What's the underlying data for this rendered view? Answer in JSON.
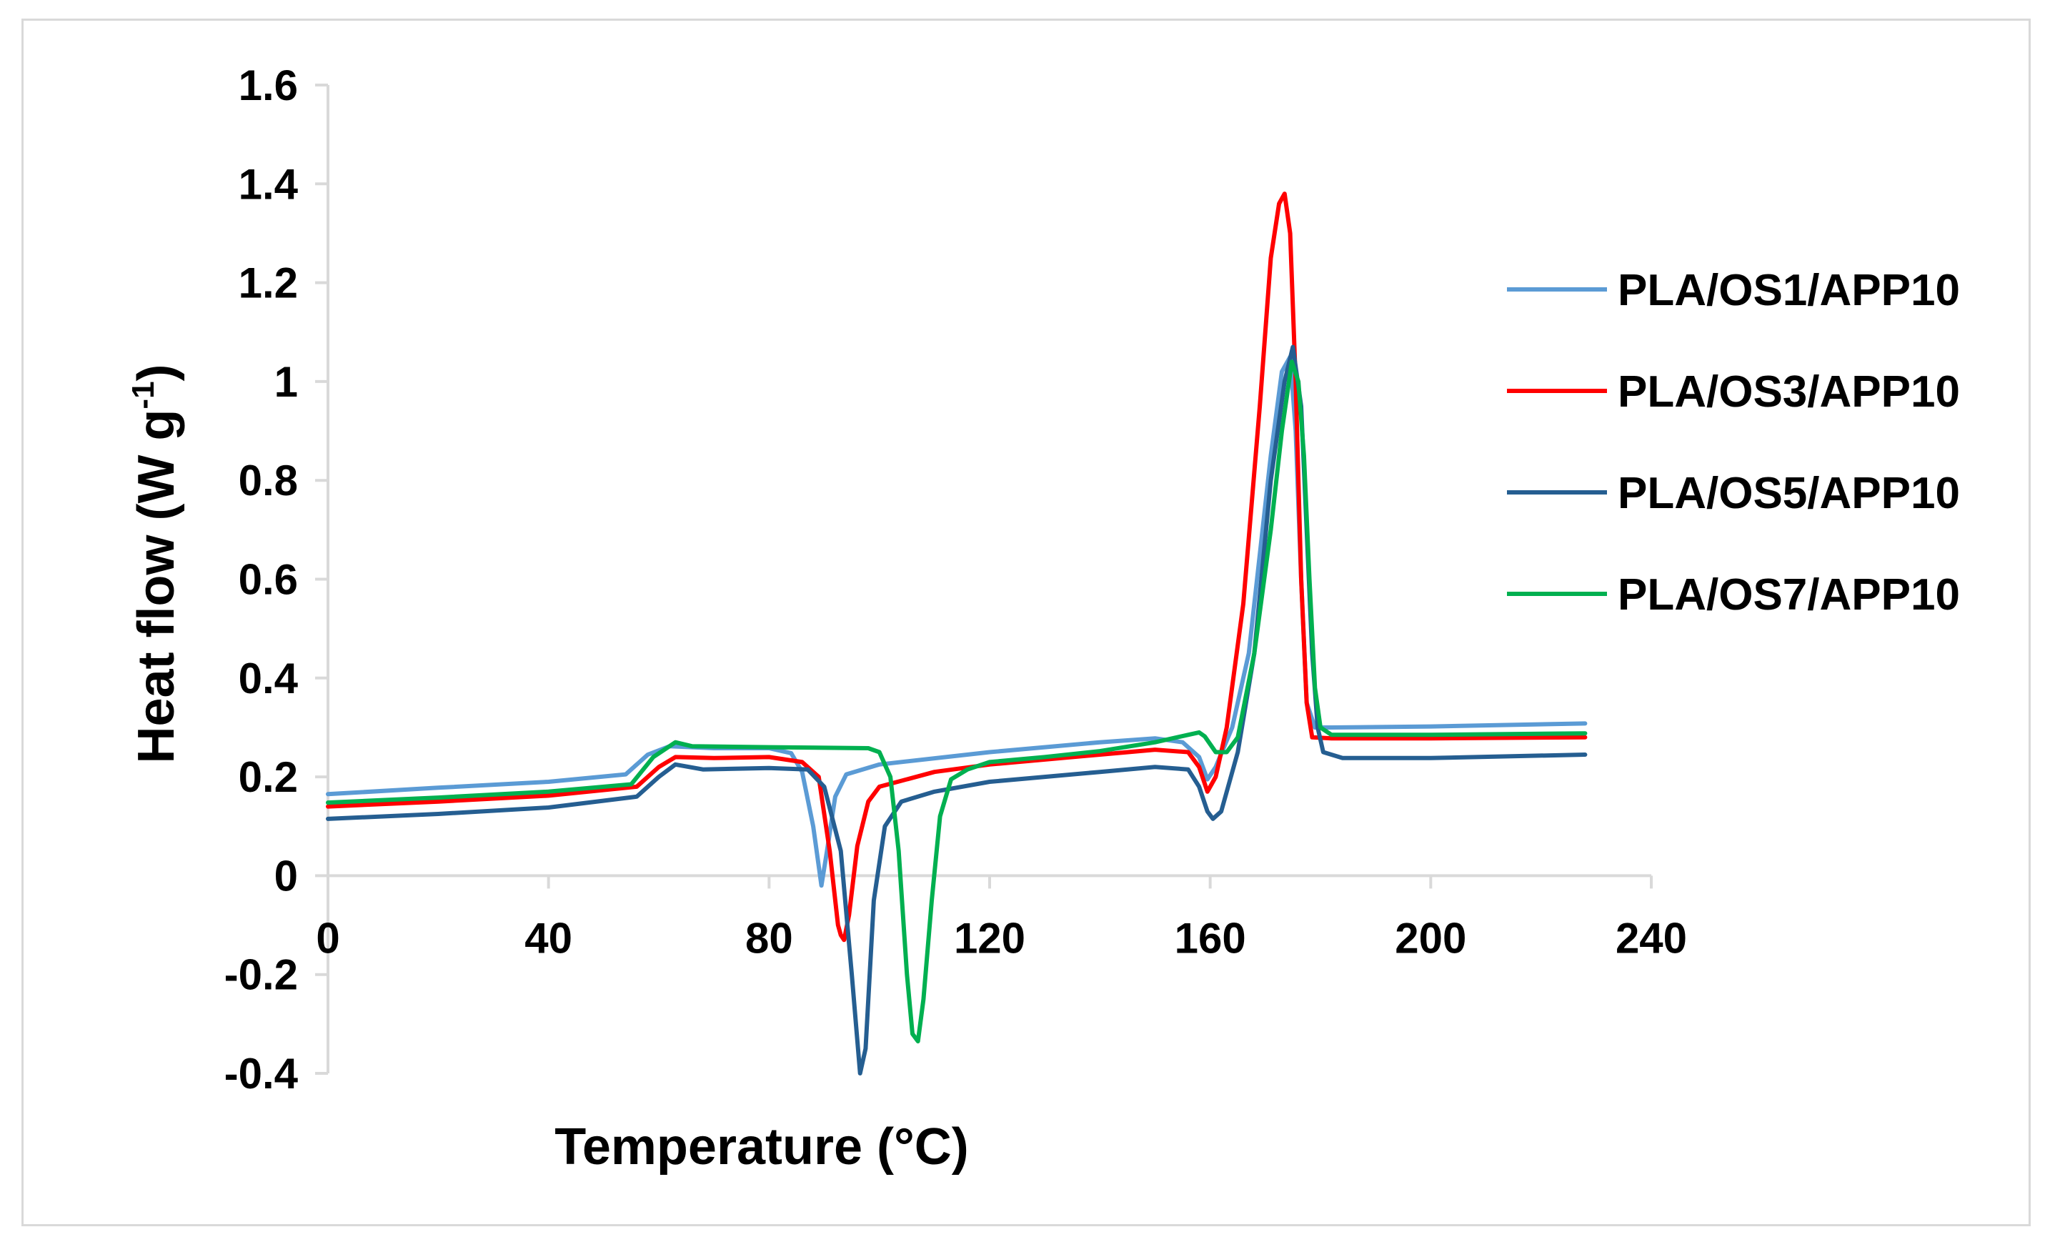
{
  "chart_data": {
    "type": "line",
    "title": "",
    "xlabel": "Temperature (°C)",
    "ylabel_main": "Heat flow (W g",
    "ylabel_sup": "-1",
    "ylabel_close": ")",
    "xlim": [
      0,
      240
    ],
    "ylim": [
      -0.4,
      1.6
    ],
    "x_ticks": [
      0,
      40,
      80,
      120,
      160,
      200,
      240
    ],
    "x_tick_labels": [
      "0",
      "40",
      "80",
      "120",
      "160",
      "200",
      "240"
    ],
    "y_ticks": [
      -0.4,
      -0.2,
      0,
      0.2,
      0.4,
      0.6,
      0.8,
      1,
      1.2,
      1.4,
      1.6
    ],
    "y_tick_labels": [
      "-0.4",
      "-0.2",
      "0",
      "0.2",
      "0.4",
      "0.6",
      "0.8",
      "1",
      "1.2",
      "1.4",
      "1.6"
    ],
    "grid": false,
    "legend_position": "right",
    "series": [
      {
        "name": "PLA/OS1/APP10",
        "color": "#5b9bd5",
        "points": [
          [
            0,
            0.165
          ],
          [
            20,
            0.178
          ],
          [
            40,
            0.19
          ],
          [
            54,
            0.205
          ],
          [
            58,
            0.245
          ],
          [
            62,
            0.262
          ],
          [
            70,
            0.258
          ],
          [
            80,
            0.258
          ],
          [
            84,
            0.248
          ],
          [
            86,
            0.21
          ],
          [
            88,
            0.1
          ],
          [
            89.5,
            -0.02
          ],
          [
            90.5,
            0.05
          ],
          [
            92,
            0.16
          ],
          [
            94,
            0.205
          ],
          [
            100,
            0.225
          ],
          [
            120,
            0.25
          ],
          [
            140,
            0.27
          ],
          [
            150,
            0.278
          ],
          [
            155,
            0.27
          ],
          [
            158,
            0.24
          ],
          [
            159.5,
            0.195
          ],
          [
            161,
            0.22
          ],
          [
            164,
            0.3
          ],
          [
            167,
            0.45
          ],
          [
            169,
            0.65
          ],
          [
            171,
            0.85
          ],
          [
            173,
            1.02
          ],
          [
            174.5,
            1.05
          ],
          [
            175.5,
            0.9
          ],
          [
            176.5,
            0.6
          ],
          [
            177.5,
            0.35
          ],
          [
            179,
            0.3
          ],
          [
            182,
            0.3
          ],
          [
            200,
            0.302
          ],
          [
            228,
            0.308
          ]
        ]
      },
      {
        "name": "PLA/OS3/APP10",
        "color": "#ff0000",
        "points": [
          [
            0,
            0.14
          ],
          [
            20,
            0.15
          ],
          [
            40,
            0.162
          ],
          [
            56,
            0.18
          ],
          [
            60,
            0.22
          ],
          [
            63,
            0.24
          ],
          [
            70,
            0.238
          ],
          [
            80,
            0.24
          ],
          [
            86,
            0.23
          ],
          [
            89,
            0.2
          ],
          [
            91,
            0.05
          ],
          [
            92.5,
            -0.1
          ],
          [
            93,
            -0.12
          ],
          [
            93.6,
            -0.13
          ],
          [
            94.5,
            -0.08
          ],
          [
            96,
            0.06
          ],
          [
            98,
            0.15
          ],
          [
            100,
            0.18
          ],
          [
            110,
            0.21
          ],
          [
            120,
            0.225
          ],
          [
            140,
            0.245
          ],
          [
            150,
            0.255
          ],
          [
            156,
            0.25
          ],
          [
            158,
            0.22
          ],
          [
            159.5,
            0.17
          ],
          [
            161,
            0.2
          ],
          [
            163,
            0.3
          ],
          [
            166,
            0.55
          ],
          [
            169,
            0.95
          ],
          [
            171,
            1.25
          ],
          [
            172.5,
            1.36
          ],
          [
            173.5,
            1.38
          ],
          [
            174.5,
            1.3
          ],
          [
            175.5,
            1.0
          ],
          [
            176.5,
            0.6
          ],
          [
            177.5,
            0.35
          ],
          [
            178.5,
            0.28
          ],
          [
            182,
            0.278
          ],
          [
            200,
            0.278
          ],
          [
            228,
            0.28
          ]
        ]
      },
      {
        "name": "PLA/OS5/APP10",
        "color": "#255e91",
        "points": [
          [
            0,
            0.115
          ],
          [
            20,
            0.125
          ],
          [
            40,
            0.138
          ],
          [
            56,
            0.16
          ],
          [
            60,
            0.2
          ],
          [
            63,
            0.225
          ],
          [
            68,
            0.215
          ],
          [
            80,
            0.218
          ],
          [
            87,
            0.215
          ],
          [
            90,
            0.18
          ],
          [
            93,
            0.05
          ],
          [
            95,
            -0.2
          ],
          [
            96.5,
            -0.4
          ],
          [
            97.5,
            -0.35
          ],
          [
            99,
            -0.05
          ],
          [
            101,
            0.1
          ],
          [
            104,
            0.15
          ],
          [
            110,
            0.17
          ],
          [
            120,
            0.19
          ],
          [
            140,
            0.21
          ],
          [
            150,
            0.22
          ],
          [
            156,
            0.215
          ],
          [
            158,
            0.18
          ],
          [
            159.5,
            0.13
          ],
          [
            160.5,
            0.115
          ],
          [
            162,
            0.13
          ],
          [
            165,
            0.25
          ],
          [
            168,
            0.45
          ],
          [
            171,
            0.8
          ],
          [
            173.5,
            1.0
          ],
          [
            175,
            1.07
          ],
          [
            176.5,
            0.95
          ],
          [
            177.5,
            0.7
          ],
          [
            178.5,
            0.45
          ],
          [
            179.5,
            0.3
          ],
          [
            180.5,
            0.25
          ],
          [
            184,
            0.238
          ],
          [
            200,
            0.238
          ],
          [
            228,
            0.245
          ]
        ]
      },
      {
        "name": "PLA/OS7/APP10",
        "color": "#00b050",
        "points": [
          [
            0,
            0.148
          ],
          [
            20,
            0.158
          ],
          [
            40,
            0.17
          ],
          [
            55,
            0.185
          ],
          [
            59,
            0.24
          ],
          [
            63,
            0.27
          ],
          [
            66,
            0.262
          ],
          [
            80,
            0.26
          ],
          [
            98,
            0.258
          ],
          [
            100,
            0.25
          ],
          [
            102,
            0.2
          ],
          [
            103.5,
            0.05
          ],
          [
            105,
            -0.2
          ],
          [
            106,
            -0.32
          ],
          [
            107,
            -0.335
          ],
          [
            108,
            -0.25
          ],
          [
            109.5,
            -0.05
          ],
          [
            111,
            0.12
          ],
          [
            113,
            0.195
          ],
          [
            116,
            0.215
          ],
          [
            120,
            0.23
          ],
          [
            130,
            0.24
          ],
          [
            140,
            0.252
          ],
          [
            150,
            0.27
          ],
          [
            156,
            0.285
          ],
          [
            158,
            0.29
          ],
          [
            159,
            0.282
          ],
          [
            161,
            0.25
          ],
          [
            163,
            0.25
          ],
          [
            165,
            0.28
          ],
          [
            168,
            0.45
          ],
          [
            171,
            0.7
          ],
          [
            173,
            0.9
          ],
          [
            174.8,
            1.04
          ],
          [
            176,
            1.0
          ],
          [
            177,
            0.85
          ],
          [
            178,
            0.6
          ],
          [
            179,
            0.38
          ],
          [
            180,
            0.3
          ],
          [
            182,
            0.285
          ],
          [
            200,
            0.285
          ],
          [
            228,
            0.288
          ]
        ]
      }
    ]
  }
}
